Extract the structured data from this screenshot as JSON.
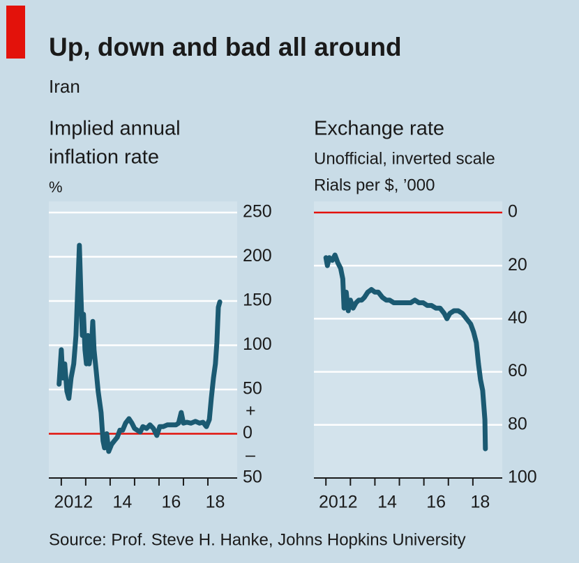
{
  "title": "Up, down and bad all around",
  "subtitle": "Iran",
  "source": "Source: Prof. Steve H. Hanke, Johns Hopkins University",
  "chart_data": [
    {
      "type": "line",
      "title_lines": [
        "Implied annual",
        "inflation rate"
      ],
      "unit": "%",
      "color": "#1b5a72",
      "zero_line_color": "#e3120b",
      "grid": true,
      "x": [
        2011.91,
        2012.0,
        2012.06,
        2012.14,
        2012.23,
        2012.31,
        2012.4,
        2012.51,
        2012.6,
        2012.69,
        2012.74,
        2012.8,
        2012.86,
        2012.91,
        2012.97,
        2013.03,
        2013.09,
        2013.14,
        2013.23,
        2013.29,
        2013.34,
        2013.43,
        2013.51,
        2013.63,
        2013.71,
        2013.77,
        2013.86,
        2013.94,
        2014.06,
        2014.17,
        2014.29,
        2014.4,
        2014.51,
        2014.63,
        2014.77,
        2014.89,
        2015.0,
        2015.11,
        2015.23,
        2015.34,
        2015.49,
        2015.63,
        2015.77,
        2015.91,
        2016.03,
        2016.17,
        2016.34,
        2016.51,
        2016.69,
        2016.8,
        2016.91,
        2017.0,
        2017.14,
        2017.31,
        2017.49,
        2017.66,
        2017.8,
        2017.94,
        2018.06,
        2018.14,
        2018.23,
        2018.31,
        2018.37,
        2018.43,
        2018.49
      ],
      "values": [
        56,
        95,
        63,
        79,
        48,
        40,
        63,
        79,
        111,
        175,
        213,
        159,
        111,
        135,
        95,
        79,
        111,
        79,
        95,
        127,
        95,
        71,
        48,
        24,
        -8,
        -16,
        0,
        -20,
        -12,
        -8,
        -4,
        4,
        4,
        12,
        17,
        12,
        6,
        4,
        2,
        8,
        6,
        10,
        6,
        -2,
        8,
        8,
        10,
        10,
        10,
        12,
        24,
        12,
        13,
        12,
        14,
        12,
        13,
        8,
        16,
        40,
        63,
        79,
        103,
        143,
        149
      ],
      "xlim": [
        2011.49,
        2019.2
      ],
      "xticks": [
        2012,
        2013,
        2014,
        2015,
        2016,
        2017,
        2018
      ],
      "xlabels": [
        {
          "value": 2012.5,
          "label": "2012"
        },
        {
          "value": 2014.5,
          "label": "14"
        },
        {
          "value": 2016.5,
          "label": "16"
        },
        {
          "value": 2018.3,
          "label": "18"
        }
      ],
      "ylim": [
        -50,
        250
      ],
      "yticks": [
        {
          "value": -50,
          "label": "50"
        },
        0,
        50,
        100,
        150,
        200,
        250
      ],
      "sign_labels": [
        {
          "value": 25,
          "label": "+"
        },
        {
          "value": -25,
          "label": "–"
        }
      ]
    },
    {
      "type": "line",
      "title_lines": [
        "Exchange rate"
      ],
      "subtitle_lines": [
        "Unofficial, inverted scale",
        "Rials per $, ’000"
      ],
      "color": "#1b5a72",
      "zero_line_color": "#e3120b",
      "grid": true,
      "inverted": true,
      "x": [
        2012.0,
        2012.06,
        2012.14,
        2012.26,
        2012.37,
        2012.49,
        2012.6,
        2012.69,
        2012.74,
        2012.83,
        2012.91,
        2013.0,
        2013.11,
        2013.23,
        2013.34,
        2013.46,
        2013.57,
        2013.71,
        2013.86,
        2014.0,
        2014.14,
        2014.31,
        2014.46,
        2014.6,
        2014.77,
        2014.94,
        2015.11,
        2015.29,
        2015.46,
        2015.63,
        2015.8,
        2015.97,
        2016.14,
        2016.31,
        2016.49,
        2016.66,
        2016.83,
        2016.94,
        2017.06,
        2017.23,
        2017.4,
        2017.57,
        2017.74,
        2017.91,
        2018.03,
        2018.14,
        2018.23,
        2018.31,
        2018.4,
        2018.49,
        2018.51
      ],
      "values": [
        17,
        20,
        17,
        18,
        16,
        19,
        21,
        25,
        36,
        30,
        37,
        33,
        36,
        34,
        33,
        33,
        32,
        30,
        29,
        30,
        30,
        32,
        33,
        33,
        34,
        34,
        34,
        34,
        34,
        33,
        34,
        34,
        35,
        35,
        36,
        36,
        38,
        40,
        38,
        37,
        37,
        38,
        40,
        42,
        45,
        49,
        57,
        63,
        67,
        78,
        89
      ],
      "xlim": [
        2011.51,
        2019.2
      ],
      "xticks": [
        2012,
        2013,
        2014,
        2015,
        2016,
        2017,
        2018
      ],
      "xlabels": [
        {
          "value": 2012.5,
          "label": "2012"
        },
        {
          "value": 2014.5,
          "label": "14"
        },
        {
          "value": 2016.5,
          "label": "16"
        },
        {
          "value": 2018.3,
          "label": "18"
        }
      ],
      "ylim": [
        0,
        100
      ],
      "yticks": [
        0,
        20,
        40,
        60,
        80,
        100
      ]
    }
  ]
}
